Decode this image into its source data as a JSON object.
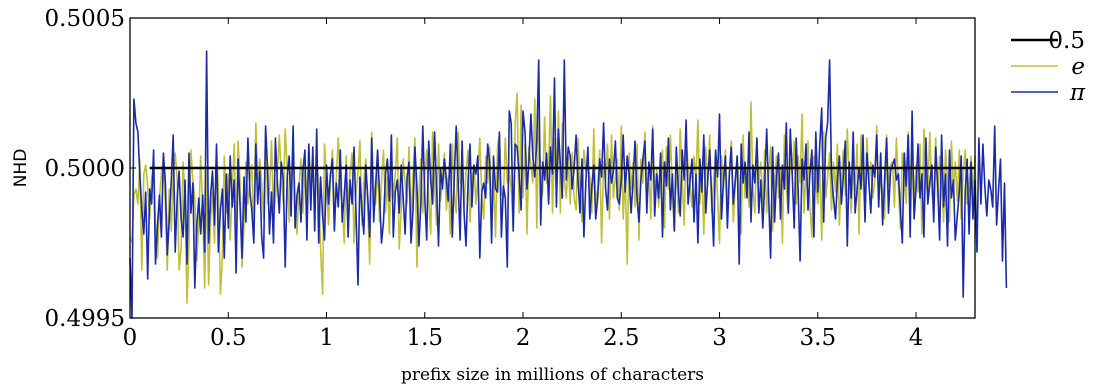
{
  "chart_data": {
    "type": "line",
    "xlabel": "prefix size in millions of characters",
    "ylabel": "NHD",
    "xlim": [
      0,
      4.3
    ],
    "ylim": [
      0.4995,
      0.5005
    ],
    "x_ticks": [
      "0",
      "0.5",
      "1",
      "1.5",
      "2",
      "2.5",
      "3",
      "3.5",
      "4"
    ],
    "x_tick_values": [
      0,
      0.5,
      1,
      1.5,
      2,
      2.5,
      3,
      3.5,
      4
    ],
    "y_ticks": [
      "0.4995",
      "0.5000",
      "0.5005"
    ],
    "y_tick_values": [
      0.4995,
      0.5,
      0.5005
    ],
    "grid": false,
    "legend_position": "outside-right-top",
    "reference_line": {
      "name": "0.5",
      "value": 0.5,
      "x_range": [
        0.1,
        4.3
      ],
      "color": "#000000"
    },
    "series": [
      {
        "name": "e",
        "color": "#c0bf3a",
        "x_start": 0.0,
        "x_step": 0.01,
        "values": [
          0.49977,
          0.49975,
          0.49991,
          0.49993,
          0.49988,
          0.50003,
          0.49966,
          0.49998,
          0.50001,
          0.49994,
          0.49983,
          0.49996,
          0.50002,
          0.49981,
          0.4997,
          0.4999,
          0.49998,
          0.50004,
          0.49987,
          0.49966,
          0.49993,
          0.49979,
          0.49998,
          0.50005,
          0.49996,
          0.49966,
          0.49973,
          0.50002,
          0.4999,
          0.49955,
          0.49975,
          0.50006,
          0.49996,
          0.4999,
          0.49969,
          0.49982,
          0.50004,
          0.49987,
          0.4996,
          0.49999,
          0.49961,
          0.49983,
          0.49992,
          0.49975,
          0.50007,
          0.49993,
          0.49958,
          0.4997,
          0.50004,
          0.49985,
          0.49998,
          0.49976,
          0.49992,
          0.50008,
          0.49978,
          0.50009,
          0.49996,
          0.49967,
          0.49981,
          0.50002,
          0.49988,
          0.49996,
          0.50001,
          0.49978,
          0.50015,
          0.49996,
          0.50003,
          0.49995,
          0.49983,
          0.50012,
          0.49988,
          0.49992,
          0.50009,
          0.49984,
          0.4999,
          0.49998,
          0.50011,
          0.49997,
          0.49988,
          0.50013,
          0.5,
          0.49982,
          0.49997,
          0.50006,
          0.4999,
          0.49978,
          0.49994,
          0.50003,
          0.49985,
          0.49999,
          0.49988,
          0.50007,
          0.49996,
          0.50002,
          0.49985,
          0.50004,
          0.49993,
          0.49973,
          0.49958,
          0.50008,
          0.49997,
          0.49981,
          0.49995,
          0.50006,
          0.49984,
          0.49997,
          0.5001,
          0.49993,
          0.49988,
          0.49975,
          0.50004,
          0.49986,
          0.49999,
          0.50005,
          0.49975,
          0.49992,
          0.49998,
          0.50009,
          0.49981,
          0.49995,
          0.50003,
          0.49987,
          0.49968,
          0.50012,
          0.49993,
          0.49988,
          0.50001,
          0.49982,
          0.49996,
          0.50006,
          0.49985,
          0.49997,
          0.49978,
          0.50005,
          0.4999,
          0.49998,
          0.5001,
          0.49973,
          0.49986,
          0.50003,
          0.49995,
          0.49988,
          0.50007,
          0.49982,
          0.49998,
          0.5001,
          0.49967,
          0.49991,
          0.50003,
          0.49985,
          0.49998,
          0.50006,
          0.4999,
          0.49978,
          0.50012,
          0.49994,
          0.49981,
          0.50008,
          0.49989,
          0.49996,
          0.50005,
          0.49986,
          0.49997,
          0.49978,
          0.50008,
          0.49992,
          0.49985,
          0.50012,
          0.49995,
          0.50003,
          0.49987,
          0.49999,
          0.50006,
          0.49982,
          0.49995,
          0.50001,
          0.49988,
          0.49997,
          0.5001,
          0.4999,
          0.49983,
          0.50004,
          0.49995,
          0.50007,
          0.49986,
          0.49998,
          0.49977,
          0.50007,
          0.50011,
          0.49992,
          0.4999,
          0.5001,
          0.49995,
          0.49999,
          0.49993,
          0.4998,
          0.50015,
          0.50025,
          0.49985,
          0.50021,
          0.4999,
          0.50008,
          0.49978,
          0.50007,
          0.50001,
          0.49995,
          0.50023,
          0.4998,
          0.50018,
          0.49988,
          0.49992,
          0.50017,
          0.49995,
          0.50001,
          0.50024,
          0.49985,
          0.5001,
          0.49991,
          0.50019,
          0.49985,
          0.50015,
          0.49996,
          0.4999,
          0.50004,
          0.49988,
          0.50005,
          0.4999,
          0.49986,
          0.5001,
          0.49994,
          0.49982,
          0.50006,
          0.49999,
          0.50002,
          0.49997,
          0.49985,
          0.50013,
          0.49988,
          0.49993,
          0.50006,
          0.49975,
          0.50002,
          0.49996,
          0.50008,
          0.49983,
          0.50011,
          0.4999,
          0.49997,
          0.50003,
          0.49986,
          0.50014,
          0.49983,
          0.49998,
          0.49968,
          0.50005,
          0.49993,
          0.50002,
          0.49987,
          0.50008,
          0.49976,
          0.50003,
          0.49995,
          0.50012,
          0.49991,
          0.49999,
          0.49983,
          0.50014,
          0.4999,
          0.5,
          0.49987,
          0.49995,
          0.50006,
          0.4998,
          0.50007,
          0.49993,
          0.50011,
          0.49992,
          0.49979,
          0.50004,
          0.49985,
          0.50013,
          0.49996,
          0.49981,
          0.50009,
          0.50001,
          0.49994,
          0.49987,
          0.50004,
          0.49996,
          0.50016,
          0.49988,
          0.5,
          0.49978,
          0.50007,
          0.49994,
          0.50011,
          0.49985,
          0.49996,
          0.50005,
          0.4999,
          0.49975,
          0.50004,
          0.49993,
          0.50006,
          0.49986,
          0.49999,
          0.50009,
          0.49982,
          0.49995,
          0.50004,
          0.49993,
          0.49978,
          0.50011,
          0.4999,
          0.5,
          0.49987,
          0.50022,
          0.49993,
          0.49985,
          0.5001,
          0.49995,
          0.50002,
          0.49988,
          0.50006,
          0.49985,
          0.49998,
          0.50007,
          0.49979,
          0.49994,
          0.50004,
          0.4999,
          0.5,
          0.49975,
          0.50011,
          0.49993,
          0.49985,
          0.50003,
          0.49998,
          0.50009,
          0.49988,
          0.50004,
          0.49995,
          0.50018,
          0.49985,
          0.49998,
          0.50009,
          0.49987,
          0.49977,
          0.50004,
          0.49995,
          0.49988,
          0.50001,
          0.49976,
          0.50012,
          0.4999,
          0.49997,
          0.50005,
          0.49986,
          0.50002,
          0.49992,
          0.50008,
          0.49981,
          0.49996,
          0.50006,
          0.49991,
          0.50013,
          0.49996,
          0.49985,
          0.50002,
          0.49992,
          0.50008,
          0.49978,
          0.50011,
          0.49996,
          0.49984,
          0.5001,
          0.49995,
          0.50002,
          0.4999,
          0.49996,
          0.50014,
          0.49989,
          0.49997,
          0.49992,
          0.49983,
          0.50011,
          0.49994,
          0.50001,
          0.50002,
          0.49987,
          0.5001,
          0.49994,
          0.4998,
          0.50005,
          0.49997,
          0.49988,
          0.50012,
          0.49995,
          0.50002,
          0.49986,
          0.50001,
          0.49992,
          0.50008,
          0.49978,
          0.50013,
          0.49996,
          0.49991,
          0.50012,
          0.49992,
          0.49986,
          0.5001,
          0.4999,
          0.50004,
          0.49996,
          0.49982,
          0.50006,
          0.49996,
          0.49982,
          0.50009,
          0.49993,
          0.50002,
          0.49989,
          0.50006,
          0.49983,
          0.49998,
          0.50006,
          0.49988,
          0.49994,
          0.50004,
          0.4999,
          0.50004,
          0.49972
        ]
      },
      {
        "name": "π",
        "color": "#1a2aa8",
        "x_start": 0.0,
        "x_step": 0.01,
        "values": [
          0.4997,
          0.49943,
          0.50023,
          0.50015,
          0.50012,
          0.49998,
          0.49986,
          0.49978,
          0.49992,
          0.49963,
          0.49993,
          0.49988,
          0.50006,
          0.49968,
          0.49981,
          0.49991,
          0.49977,
          0.50005,
          0.49995,
          0.49971,
          0.49983,
          0.49996,
          0.50011,
          0.49972,
          0.4999,
          0.49999,
          0.49983,
          0.49977,
          0.49996,
          0.49968,
          0.50005,
          0.49985,
          0.49995,
          0.4996,
          0.49981,
          0.4999,
          0.49978,
          0.49991,
          0.49972,
          0.50039,
          0.49975,
          0.49991,
          0.49999,
          0.49981,
          0.50008,
          0.49972,
          0.49986,
          0.49993,
          0.4997,
          0.49998,
          0.4998,
          0.50004,
          0.49987,
          0.49996,
          0.49965,
          0.50003,
          0.49988,
          0.4997,
          0.49997,
          0.49982,
          0.5001,
          0.49992,
          0.49986,
          0.49975,
          0.50008,
          0.49988,
          0.49999,
          0.49977,
          0.4997,
          0.50014,
          0.5,
          0.49978,
          0.49992,
          0.49975,
          0.5001,
          0.49995,
          0.49985,
          0.50002,
          0.49996,
          0.49967,
          0.49997,
          0.50004,
          0.49984,
          0.50014,
          0.4998,
          0.49991,
          0.49995,
          0.49982,
          0.49999,
          0.50006,
          0.49976,
          0.50008,
          0.49986,
          0.50007,
          0.49979,
          0.50013,
          0.49975,
          0.49997,
          0.49984,
          0.49976,
          0.50001,
          0.49988,
          0.49998,
          0.50003,
          0.49979,
          0.49995,
          0.49987,
          0.50006,
          0.49982,
          0.49991,
          0.50001,
          0.49977,
          0.49996,
          0.49988,
          0.50007,
          0.49985,
          0.49961,
          0.49997,
          0.49986,
          0.49978,
          0.50001,
          0.4999,
          0.49977,
          0.5001,
          0.49982,
          0.49994,
          0.50006,
          0.49991,
          0.49975,
          0.49982,
          0.49998,
          0.50003,
          0.49989,
          0.50011,
          0.49977,
          0.49992,
          0.49996,
          0.49985,
          0.50001,
          0.4999,
          0.49978,
          0.49997,
          0.50002,
          0.49975,
          0.49986,
          0.50007,
          0.49994,
          0.49974,
          0.49988,
          0.50014,
          0.4999,
          0.49976,
          0.50009,
          0.49996,
          0.49988,
          0.50012,
          0.49993,
          0.49974,
          0.5,
          0.49993,
          0.50003,
          0.49996,
          0.49989,
          0.50008,
          0.49977,
          0.49996,
          0.50014,
          0.49995,
          0.49976,
          0.50009,
          0.49985,
          0.49974,
          0.49995,
          0.50008,
          0.49987,
          0.50001,
          0.49998,
          0.50004,
          0.4997,
          0.49992,
          0.49995,
          0.4999,
          0.50008,
          0.50002,
          0.49975,
          0.50004,
          0.49993,
          0.49992,
          0.50012,
          0.49977,
          0.49994,
          0.4999,
          0.49967,
          0.50019,
          0.50015,
          0.49979,
          0.50008,
          0.50007,
          0.49998,
          0.49986,
          0.50019,
          0.50012,
          0.49993,
          0.50002,
          0.50018,
          0.50004,
          0.49997,
          0.50009,
          0.50036,
          0.49981,
          0.50002,
          0.49996,
          0.50005,
          0.49988,
          0.50007,
          0.49998,
          0.5003,
          0.49987,
          0.50013,
          0.50001,
          0.4999,
          0.50036,
          0.49996,
          0.50007,
          0.50004,
          0.49993,
          0.5,
          0.50011,
          0.49996,
          0.49985,
          0.50003,
          0.49977,
          0.49996,
          0.50007,
          0.49983,
          0.49994,
          0.50001,
          0.49983,
          0.4999,
          0.50003,
          0.49997,
          0.50015,
          0.49993,
          0.49986,
          0.50003,
          0.49995,
          0.49999,
          0.50009,
          0.4999,
          0.49988,
          0.49996,
          0.50011,
          0.49992,
          0.50004,
          0.49998,
          0.49985,
          0.49996,
          0.50009,
          0.4999,
          0.49982,
          0.49996,
          0.50003,
          0.50009,
          0.49985,
          0.50002,
          0.49996,
          0.50013,
          0.49984,
          0.49998,
          0.4999,
          0.50005,
          0.49977,
          0.50002,
          0.49994,
          0.5001,
          0.49986,
          0.49998,
          0.49979,
          0.50007,
          0.49993,
          0.49984,
          0.50006,
          0.49996,
          0.50016,
          0.49988,
          0.49996,
          0.50003,
          0.49982,
          0.49998,
          0.49975,
          0.50003,
          0.49992,
          0.50011,
          0.49985,
          0.49996,
          0.50006,
          0.4999,
          0.49974,
          0.50006,
          0.49997,
          0.50018,
          0.49983,
          0.49996,
          0.50004,
          0.4998,
          0.49998,
          0.50007,
          0.49988,
          0.49996,
          0.50004,
          0.49968,
          0.50008,
          0.49995,
          0.50002,
          0.4999,
          0.50012,
          0.49982,
          0.50001,
          0.49995,
          0.5001,
          0.49985,
          0.49996,
          0.4998,
          0.49995,
          0.50013,
          0.4999,
          0.4997,
          0.50007,
          0.49982,
          0.49997,
          0.50005,
          0.49983,
          0.50001,
          0.49993,
          0.50015,
          0.49985,
          0.50013,
          0.49998,
          0.4998,
          0.5001,
          0.49993,
          0.49969,
          0.50003,
          0.49996,
          0.50008,
          0.49986,
          0.49998,
          0.50006,
          0.49977,
          0.50012,
          0.49992,
          0.50008,
          0.5002,
          0.49982,
          0.5001,
          0.50015,
          0.50036,
          0.49998,
          0.4999,
          0.49983,
          0.49996,
          0.50004,
          0.49988,
          0.49997,
          0.50009,
          0.49974,
          0.50002,
          0.4999,
          0.50012,
          0.49985,
          0.49993,
          0.5,
          0.49993,
          0.50011,
          0.49982,
          0.50005,
          0.49995,
          0.49985,
          0.50001,
          0.49997,
          0.50011,
          0.49987,
          0.50005,
          0.49981,
          0.49996,
          0.5001,
          0.49985,
          0.49999,
          0.50001,
          0.50003,
          0.49996,
          0.49998,
          0.49987,
          0.49975,
          0.50005,
          0.49994,
          0.50011,
          0.49977,
          0.50019,
          0.49983,
          0.49993,
          0.50008,
          0.4999,
          0.49998,
          0.49977,
          0.5001,
          0.49988,
          0.49995,
          0.50001,
          0.49982,
          0.50007,
          0.49994,
          0.49976,
          0.50011,
          0.49987,
          0.49998,
          0.49974,
          0.50006,
          0.4999,
          0.49996,
          0.49976,
          0.49984,
          0.49992,
          0.50004,
          0.49957,
          0.49992,
          0.50003,
          0.49978,
          0.50002,
          0.49983,
          0.49996,
          0.49972,
          0.5001,
          0.49988,
          0.50008,
          0.49994,
          0.49984,
          0.49996,
          0.49993,
          0.49987,
          0.50014,
          0.49981,
          0.49993,
          0.50003,
          0.49969,
          0.49995,
          0.4996
        ]
      }
    ]
  }
}
